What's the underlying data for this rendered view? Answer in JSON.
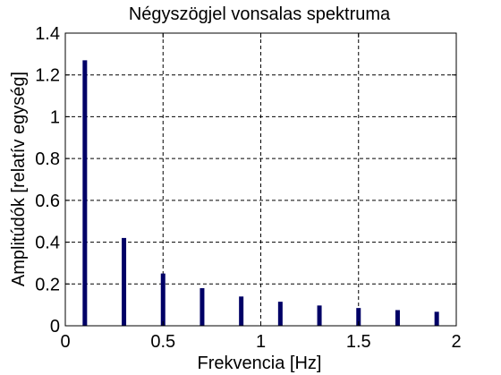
{
  "chart_data": {
    "type": "bar",
    "title": "Négyszögjel vonsalas spektruma",
    "xlabel": "Frekvencia [Hz]",
    "ylabel": "Amplitúdók [relatív egység]",
    "xlim": [
      0,
      2
    ],
    "ylim": [
      0,
      1.4
    ],
    "xticks": [
      0,
      0.5,
      1,
      1.5,
      2
    ],
    "xtick_labels": [
      "0",
      "0.5",
      "1",
      "1.5",
      "2"
    ],
    "yticks": [
      0,
      0.2,
      0.4,
      0.6,
      0.8,
      1,
      1.2,
      1.4
    ],
    "ytick_labels": [
      "0",
      "0.2",
      "0.4",
      "0.6",
      "0.8",
      "1",
      "1.2",
      "1.4"
    ],
    "grid": true,
    "bar_color": "#000066",
    "x": [
      0.1,
      0.3,
      0.5,
      0.7,
      0.9,
      1.1,
      1.3,
      1.5,
      1.7,
      1.9
    ],
    "values": [
      1.27,
      0.42,
      0.25,
      0.18,
      0.14,
      0.115,
      0.097,
      0.085,
      0.075,
      0.067
    ]
  }
}
